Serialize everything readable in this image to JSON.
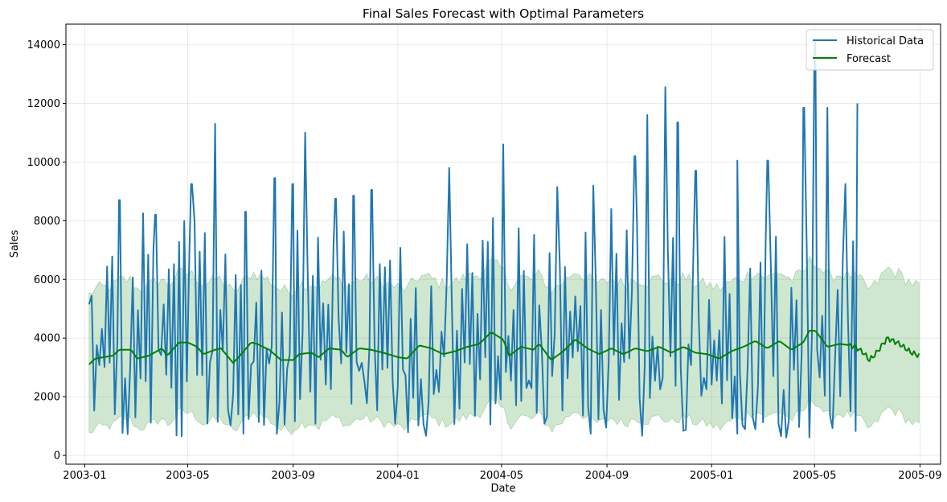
{
  "chart_data": {
    "type": "line",
    "title": "Final Sales Forecast with Optimal Parameters",
    "xlabel": "Date",
    "ylabel": "Sales",
    "x_range": [
      "2002-12-10",
      "2005-09-25"
    ],
    "ylim": [
      -300,
      14700
    ],
    "x_ticks": [
      "2003-01",
      "2003-05",
      "2003-09",
      "2004-01",
      "2004-05",
      "2004-09",
      "2005-01",
      "2005-05",
      "2005-09"
    ],
    "y_ticks": [
      0,
      2000,
      4000,
      6000,
      8000,
      10000,
      12000,
      14000
    ],
    "grid": true,
    "legend": "top-right",
    "colors": {
      "historical": "#1f77b4",
      "forecast": "#008000",
      "band": "#008000"
    },
    "series": [
      {
        "name": "Historical Data",
        "peaks": [
          [
            "2003-01-06",
            5150
          ],
          [
            "2003-02-10",
            8700
          ],
          [
            "2003-03-10",
            8250
          ],
          [
            "2003-03-24",
            8200
          ],
          [
            "2003-05-05",
            9250
          ],
          [
            "2003-06-02",
            11300
          ],
          [
            "2003-07-07",
            8300
          ],
          [
            "2003-08-11",
            9450
          ],
          [
            "2003-09-01",
            9250
          ],
          [
            "2003-09-15",
            11000
          ],
          [
            "2003-10-20",
            8750
          ],
          [
            "2003-11-10",
            8850
          ],
          [
            "2003-12-01",
            9050
          ],
          [
            "2004-03-01",
            9800
          ],
          [
            "2004-05-03",
            10600
          ],
          [
            "2004-07-05",
            9150
          ],
          [
            "2004-08-16",
            9200
          ],
          [
            "2004-09-06",
            8400
          ],
          [
            "2004-10-04",
            10200
          ],
          [
            "2004-10-18",
            11600
          ],
          [
            "2004-11-08",
            12550
          ],
          [
            "2004-11-22",
            11350
          ],
          [
            "2004-12-13",
            9700
          ],
          [
            "2005-01-31",
            10050
          ],
          [
            "2005-03-07",
            10050
          ],
          [
            "2005-04-18",
            11850
          ],
          [
            "2005-05-02",
            14100
          ],
          [
            "2005-05-16",
            11850
          ],
          [
            "2005-06-06",
            9250
          ],
          [
            "2005-06-20",
            12000
          ]
        ]
      },
      {
        "name": "Forecast",
        "points": [
          [
            "2003-01-06",
            3100
          ],
          [
            "2003-01-13",
            3300
          ],
          [
            "2003-02-03",
            3400
          ],
          [
            "2003-02-10",
            3600
          ],
          [
            "2003-02-24",
            3600
          ],
          [
            "2003-03-03",
            3300
          ],
          [
            "2003-03-17",
            3400
          ],
          [
            "2003-04-01",
            3650
          ],
          [
            "2003-04-07",
            3400
          ],
          [
            "2003-04-21",
            3850
          ],
          [
            "2003-05-01",
            3850
          ],
          [
            "2003-05-12",
            3700
          ],
          [
            "2003-05-19",
            3450
          ],
          [
            "2003-06-02",
            3600
          ],
          [
            "2003-06-09",
            3650
          ],
          [
            "2003-06-23",
            3150
          ],
          [
            "2003-07-01",
            3400
          ],
          [
            "2003-07-14",
            3850
          ],
          [
            "2003-07-21",
            3800
          ],
          [
            "2003-08-04",
            3600
          ],
          [
            "2003-08-18",
            3250
          ],
          [
            "2003-09-01",
            3250
          ],
          [
            "2003-09-08",
            3450
          ],
          [
            "2003-09-22",
            3500
          ],
          [
            "2003-10-01",
            3350
          ],
          [
            "2003-10-13",
            3650
          ],
          [
            "2003-10-27",
            3600
          ],
          [
            "2003-11-03",
            3350
          ],
          [
            "2003-11-17",
            3650
          ],
          [
            "2003-12-01",
            3600
          ],
          [
            "2003-12-15",
            3500
          ],
          [
            "2004-01-01",
            3350
          ],
          [
            "2004-01-12",
            3300
          ],
          [
            "2004-01-26",
            3750
          ],
          [
            "2004-02-09",
            3650
          ],
          [
            "2004-02-23",
            3450
          ],
          [
            "2004-03-08",
            3550
          ],
          [
            "2004-03-22",
            3700
          ],
          [
            "2004-04-05",
            3800
          ],
          [
            "2004-04-19",
            4200
          ],
          [
            "2004-05-03",
            3950
          ],
          [
            "2004-05-10",
            3400
          ],
          [
            "2004-05-24",
            3700
          ],
          [
            "2004-06-07",
            3600
          ],
          [
            "2004-06-14",
            3800
          ],
          [
            "2004-06-28",
            3250
          ],
          [
            "2004-07-12",
            3550
          ],
          [
            "2004-07-26",
            3950
          ],
          [
            "2004-08-09",
            3650
          ],
          [
            "2004-08-23",
            3450
          ],
          [
            "2004-09-06",
            3650
          ],
          [
            "2004-09-20",
            3450
          ],
          [
            "2004-10-04",
            3650
          ],
          [
            "2004-10-18",
            3550
          ],
          [
            "2004-11-01",
            3700
          ],
          [
            "2004-11-15",
            3500
          ],
          [
            "2004-11-29",
            3700
          ],
          [
            "2004-12-13",
            3500
          ],
          [
            "2004-12-27",
            3450
          ],
          [
            "2005-01-10",
            3300
          ],
          [
            "2005-01-24",
            3550
          ],
          [
            "2005-02-07",
            3700
          ],
          [
            "2005-02-21",
            3900
          ],
          [
            "2005-03-07",
            3650
          ],
          [
            "2005-03-21",
            3900
          ],
          [
            "2005-04-04",
            3600
          ],
          [
            "2005-04-18",
            3850
          ],
          [
            "2005-04-25",
            4250
          ],
          [
            "2005-05-02",
            4250
          ],
          [
            "2005-05-16",
            3700
          ],
          [
            "2005-05-30",
            3800
          ],
          [
            "2005-06-13",
            3750
          ],
          [
            "2005-06-20",
            3650
          ],
          [
            "2005-06-27",
            3500
          ],
          [
            "2005-07-04",
            3250
          ],
          [
            "2005-07-11",
            3450
          ],
          [
            "2005-07-25",
            4000
          ],
          [
            "2005-08-08",
            3800
          ],
          [
            "2005-08-22",
            3500
          ],
          [
            "2005-08-31",
            3400
          ]
        ]
      }
    ],
    "interval_band": {
      "upper": 5950,
      "lower": 1200
    }
  }
}
